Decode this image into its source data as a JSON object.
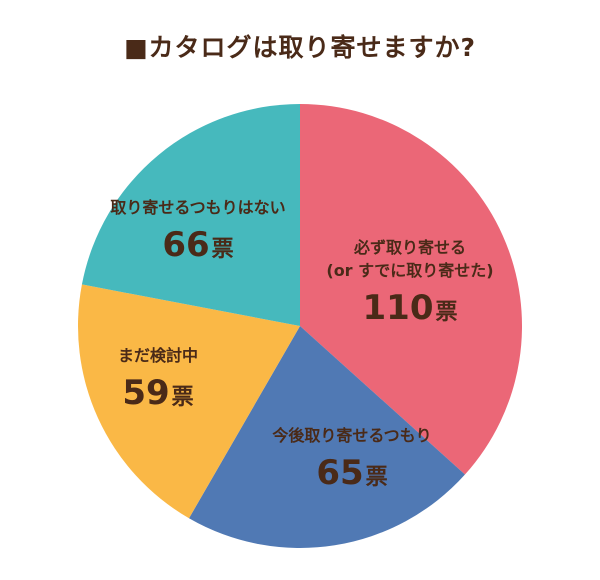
{
  "chart_data": {
    "type": "pie",
    "title": "■カタログは取り寄せますか?",
    "unit": "票",
    "slices": [
      {
        "label": "必ず取り寄せる",
        "label_sub": "(or すでに取り寄せた)",
        "value": 110,
        "color": "#eb6777"
      },
      {
        "label": "今後取り寄せるつもり",
        "label_sub": "",
        "value": 65,
        "color": "#5079b4"
      },
      {
        "label": "まだ検討中",
        "label_sub": "",
        "value": 59,
        "color": "#fab846"
      },
      {
        "label": "取り寄せるつもりはない",
        "label_sub": "",
        "value": 66,
        "color": "#46b9bd"
      }
    ]
  }
}
